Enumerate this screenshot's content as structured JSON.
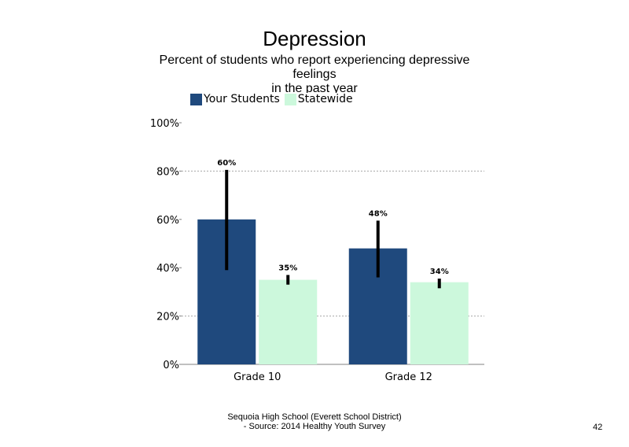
{
  "chart_data": {
    "type": "bar",
    "title": "Depression",
    "subtitle": [
      "Percent of students who report experiencing depressive",
      "feelings",
      "in the past year"
    ],
    "categories": [
      "Grade 10",
      "Grade 12"
    ],
    "series": [
      {
        "name": "Your Students",
        "color": "#1f497d",
        "values": [
          60,
          48
        ],
        "error_low": [
          39,
          36
        ],
        "error_high": [
          80.5,
          59.5
        ],
        "labels": [
          "60%",
          "48%"
        ]
      },
      {
        "name": "Statewide",
        "color": "#ccf8dc",
        "values": [
          35,
          34
        ],
        "error_low": [
          33,
          31.5
        ],
        "error_high": [
          37,
          35.5
        ],
        "labels": [
          "35%",
          "34%"
        ]
      }
    ],
    "ylim": [
      0,
      100
    ],
    "yticks": [
      0,
      20,
      40,
      60,
      80,
      100
    ],
    "ytick_labels": [
      "0%",
      "20%",
      "40%",
      "60%",
      "80%",
      "100%"
    ],
    "xlabel": "",
    "ylabel": "",
    "grid": "dashed horizontal at 20% and 80%",
    "legend_position": "top-left"
  },
  "footer": {
    "line1": "Sequoia High School (Everett School District)",
    "line2": "- Source: 2014 Healthy Youth Survey"
  },
  "page_number": "42"
}
